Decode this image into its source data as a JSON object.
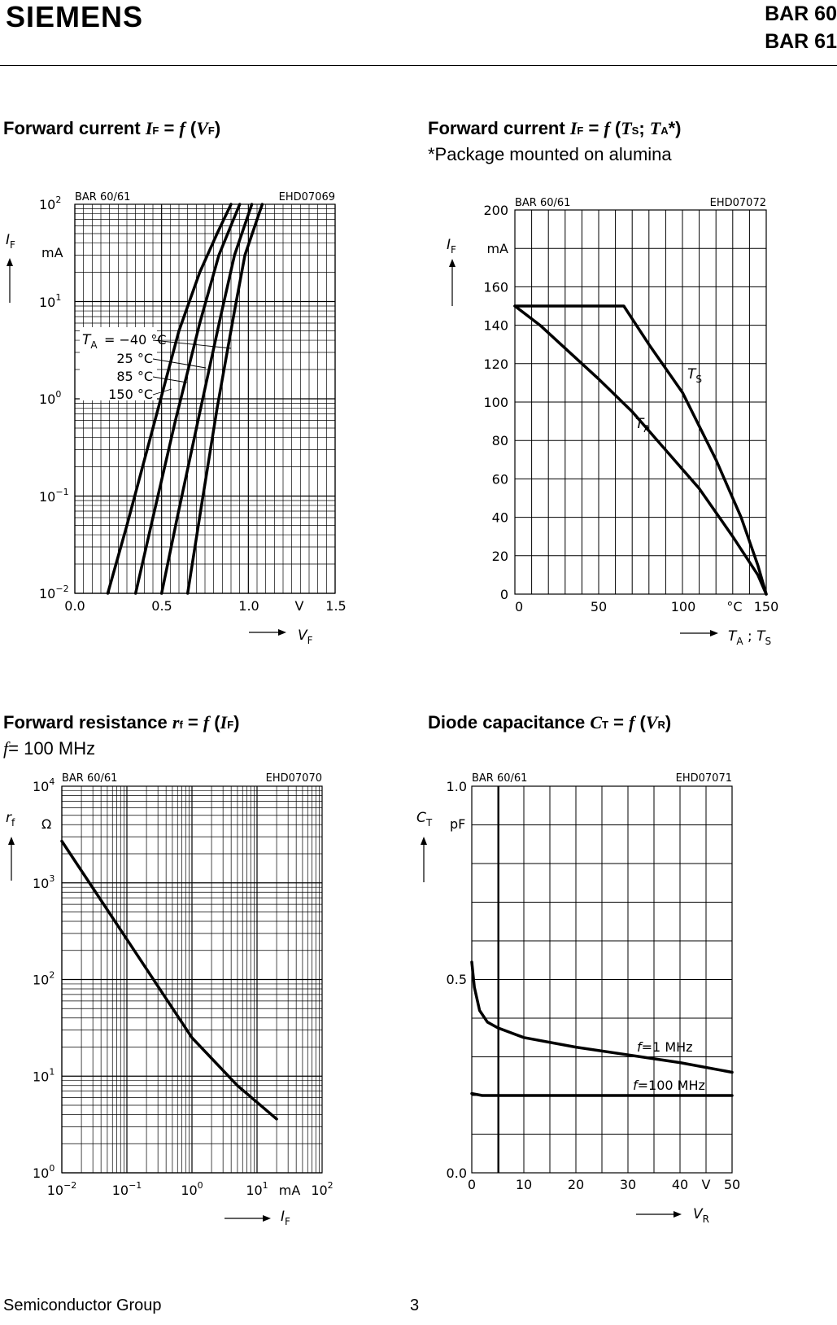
{
  "header": {
    "logo": "SIEMENS",
    "part1": "BAR 60",
    "part2": "BAR 61"
  },
  "titles": {
    "c1": {
      "lead": "Forward current ",
      "sym": "I",
      "sub": "F",
      "eq": " = ",
      "f": "f",
      "open": " (",
      "arg": "V",
      "argsub": "F",
      "close": ")",
      "line2": ""
    },
    "c2": {
      "lead": "Forward current ",
      "sym": "I",
      "sub": "F",
      "eq": " = ",
      "f": "f",
      "open": " (",
      "arg": "T",
      "argsub": "S",
      "mid": "; ",
      "arg2": "T",
      "arg2sub": "A",
      "close": "*)",
      "line2": "*Package mounted on alumina"
    },
    "c3": {
      "lead": "Forward resistance ",
      "sym": "r",
      "sub": "f",
      "eq": " = ",
      "f": "f",
      "open": " (",
      "arg": "I",
      "argsub": "F",
      "close": ")",
      "line2f": "f",
      "line2": "= 100 MHz"
    },
    "c4": {
      "lead": "Diode capacitance ",
      "sym": "C",
      "sub": "T",
      "eq": " = ",
      "f": "f",
      "open": " (",
      "arg": "V",
      "argsub": "R",
      "close": ")"
    }
  },
  "footer": {
    "left": "Semiconductor Group",
    "page": "3"
  },
  "chart_data": [
    {
      "id": "c1",
      "type": "line",
      "header_left": "BAR 60/61",
      "header_right": "EHD07069",
      "xlabel": "V",
      "xlabel_sub": "F",
      "ylabel": "I",
      "ylabel_sub": "F",
      "yunit": "mA",
      "xunit": "V",
      "yscale": "log",
      "xlim": [
        0.0,
        1.5
      ],
      "ylim": [
        0.01,
        100
      ],
      "xticks": [
        "0.0",
        "0.5",
        "1.0",
        "1.5"
      ],
      "yticks": [
        {
          "b": "10",
          "e": "2"
        },
        {
          "b": "10",
          "e": "1"
        },
        {
          "b": "10",
          "e": "0"
        },
        {
          "b": "10",
          "e": "−1"
        },
        {
          "b": "10",
          "e": "−2"
        }
      ],
      "legend": [
        "T",
        "A",
        "= −40 °C",
        "25 °C",
        "85 °C",
        "150 °C"
      ],
      "series": [
        {
          "name": "150 °C",
          "points": [
            [
              0.19,
              0.01
            ],
            [
              0.3,
              0.05
            ],
            [
              0.45,
              0.5
            ],
            [
              0.6,
              5
            ],
            [
              0.72,
              20
            ],
            [
              0.82,
              50
            ],
            [
              0.9,
              100
            ]
          ]
        },
        {
          "name": "85 °C",
          "points": [
            [
              0.35,
              0.01
            ],
            [
              0.45,
              0.06
            ],
            [
              0.58,
              0.6
            ],
            [
              0.72,
              6
            ],
            [
              0.83,
              30
            ],
            [
              0.95,
              100
            ]
          ]
        },
        {
          "name": "25 °C",
          "points": [
            [
              0.5,
              0.01
            ],
            [
              0.59,
              0.06
            ],
            [
              0.71,
              0.6
            ],
            [
              0.84,
              7
            ],
            [
              0.92,
              30
            ],
            [
              1.02,
              100
            ]
          ]
        },
        {
          "name": "−40 °C",
          "points": [
            [
              0.65,
              0.01
            ],
            [
              0.73,
              0.08
            ],
            [
              0.82,
              0.8
            ],
            [
              0.92,
              8
            ],
            [
              0.98,
              30
            ],
            [
              1.08,
              100
            ]
          ]
        }
      ]
    },
    {
      "id": "c2",
      "type": "line",
      "header_left": "BAR 60/61",
      "header_right": "EHD07072",
      "xlabel": "T_A ; T_S",
      "ylabel": "I",
      "ylabel_sub": "F",
      "yunit": "mA",
      "xunit": "°C",
      "xlim": [
        0,
        150
      ],
      "ylim": [
        0,
        200
      ],
      "xticks": [
        "0",
        "50",
        "100",
        "°C",
        "150"
      ],
      "yticks": [
        "200",
        "mA",
        "160",
        "140",
        "120",
        "100",
        "80",
        "60",
        "40",
        "20",
        "0"
      ],
      "series": [
        {
          "name": "T_S",
          "label": "T",
          "label_sub": "S",
          "points": [
            [
              0,
              150
            ],
            [
              65,
              150
            ],
            [
              80,
              130
            ],
            [
              100,
              105
            ],
            [
              120,
              70
            ],
            [
              135,
              40
            ],
            [
              145,
              15
            ],
            [
              150,
              0
            ]
          ]
        },
        {
          "name": "T_A",
          "label": "T",
          "label_sub": "A",
          "points": [
            [
              0,
              150
            ],
            [
              15,
              140
            ],
            [
              30,
              128
            ],
            [
              50,
              112
            ],
            [
              70,
              95
            ],
            [
              90,
              75
            ],
            [
              110,
              55
            ],
            [
              130,
              30
            ],
            [
              145,
              10
            ],
            [
              150,
              0
            ]
          ]
        }
      ]
    },
    {
      "id": "c3",
      "type": "line",
      "header_left": "BAR 60/61",
      "header_right": "EHD07070",
      "xlabel": "I",
      "xlabel_sub": "F",
      "ylabel": "r",
      "ylabel_sub": "f",
      "yunit": "Ω",
      "xunit": "mA",
      "xscale": "log",
      "yscale": "log",
      "xlim": [
        0.01,
        100
      ],
      "ylim": [
        1,
        10000
      ],
      "xticks": [
        {
          "b": "10",
          "e": "−2"
        },
        {
          "b": "10",
          "e": "−1"
        },
        {
          "b": "10",
          "e": "0"
        },
        {
          "b": "10",
          "e": "1"
        },
        {
          "b": "10",
          "e": "2"
        }
      ],
      "yticks": [
        {
          "b": "10",
          "e": "4"
        },
        {
          "b": "10",
          "e": "3"
        },
        {
          "b": "10",
          "e": "2"
        },
        {
          "b": "10",
          "e": "1"
        },
        {
          "b": "10",
          "e": "0"
        }
      ],
      "series": [
        {
          "name": "r_f",
          "points": [
            [
              0.01,
              2700
            ],
            [
              0.1,
              260
            ],
            [
              1,
              25
            ],
            [
              5,
              8
            ],
            [
              20,
              3.6
            ]
          ]
        }
      ]
    },
    {
      "id": "c4",
      "type": "line",
      "header_left": "BAR 60/61",
      "header_right": "EHD07071",
      "xlabel": "V",
      "xlabel_sub": "R",
      "ylabel": "C",
      "ylabel_sub": "T",
      "yunit": "pF",
      "xunit": "V",
      "xlim": [
        0,
        50
      ],
      "ylim": [
        0,
        1.0
      ],
      "xticks": [
        "0",
        "10",
        "20",
        "30",
        "40",
        "V",
        "50"
      ],
      "yticks": [
        "1.0",
        "pF",
        "0.5",
        "0.0"
      ],
      "series": [
        {
          "name": "f=1 MHz",
          "label": "f=1 MHz",
          "points": [
            [
              0,
              0.545
            ],
            [
              0.5,
              0.48
            ],
            [
              1.5,
              0.42
            ],
            [
              3,
              0.39
            ],
            [
              5,
              0.375
            ],
            [
              10,
              0.35
            ],
            [
              20,
              0.325
            ],
            [
              30,
              0.305
            ],
            [
              40,
              0.285
            ],
            [
              50,
              0.26
            ]
          ]
        },
        {
          "name": "f=100 MHz",
          "label": "f=100 MHz",
          "points": [
            [
              0,
              0.205
            ],
            [
              2,
              0.2
            ],
            [
              10,
              0.2
            ],
            [
              50,
              0.2
            ]
          ]
        }
      ]
    }
  ]
}
